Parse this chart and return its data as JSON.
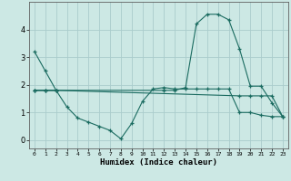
{
  "xlabel": "Humidex (Indice chaleur)",
  "ylabel": "",
  "bg_color": "#cce8e4",
  "grid_color": "#aacccc",
  "line_color": "#1a6b60",
  "x": [
    0,
    1,
    2,
    3,
    4,
    5,
    6,
    7,
    8,
    9,
    10,
    11,
    12,
    13,
    14,
    15,
    16,
    17,
    18,
    19,
    20,
    21,
    22,
    23
  ],
  "line1": [
    3.2,
    2.5,
    1.8,
    null,
    null,
    null,
    null,
    null,
    null,
    null,
    null,
    null,
    null,
    null,
    null,
    null,
    null,
    null,
    null,
    null,
    null,
    null,
    null,
    null
  ],
  "line2": [
    1.8,
    1.8,
    1.8,
    1.2,
    0.8,
    0.65,
    0.5,
    0.35,
    0.05,
    0.6,
    1.4,
    1.85,
    1.9,
    1.85,
    1.85,
    1.85,
    1.85,
    1.85,
    1.85,
    1.0,
    1.0,
    0.9,
    0.85,
    0.85
  ],
  "line3": [
    1.8,
    1.8,
    1.8,
    null,
    null,
    null,
    null,
    null,
    null,
    null,
    null,
    null,
    1.8,
    1.8,
    1.9,
    4.2,
    4.55,
    4.55,
    4.35,
    3.3,
    1.95,
    1.95,
    1.35,
    0.85
  ],
  "line4": [
    1.8,
    1.8,
    1.8,
    null,
    null,
    null,
    null,
    null,
    null,
    null,
    null,
    null,
    null,
    null,
    null,
    null,
    null,
    null,
    null,
    1.6,
    1.6,
    1.6,
    1.6,
    0.85
  ],
  "ylim": [
    -0.3,
    5.0
  ],
  "xlim": [
    -0.5,
    23.5
  ],
  "yticks": [
    0,
    1,
    2,
    3,
    4
  ],
  "xticks": [
    0,
    1,
    2,
    3,
    4,
    5,
    6,
    7,
    8,
    9,
    10,
    11,
    12,
    13,
    14,
    15,
    16,
    17,
    18,
    19,
    20,
    21,
    22,
    23
  ]
}
